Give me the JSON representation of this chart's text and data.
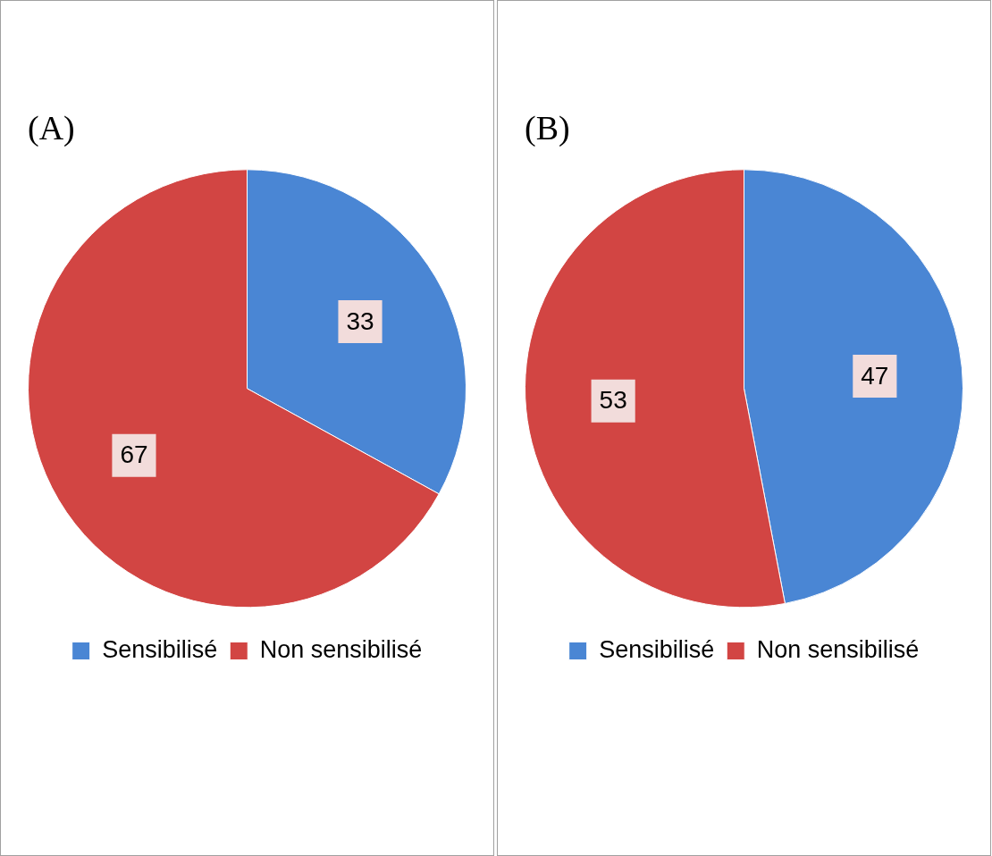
{
  "chart_data": [
    {
      "type": "pie",
      "title": "(A)",
      "categories": [
        "Sensibilisé",
        "Non sensibilisé"
      ],
      "values": [
        33,
        67
      ],
      "colors": [
        "#4a86d4",
        "#d24543"
      ],
      "data_labels": true,
      "legend": "bottom"
    },
    {
      "type": "pie",
      "title": "(B)",
      "categories": [
        "Sensibilisé",
        "Non sensibilisé"
      ],
      "values": [
        47,
        53
      ],
      "colors": [
        "#4a86d4",
        "#d24543"
      ],
      "data_labels": true,
      "legend": "bottom"
    }
  ]
}
